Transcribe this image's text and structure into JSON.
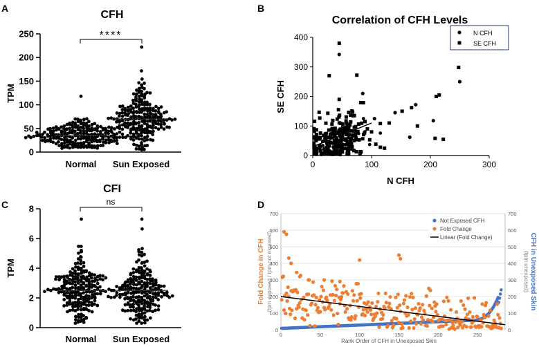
{
  "chart_data": [
    {
      "id": "A",
      "panel_label": "A",
      "type": "scatter",
      "title": "CFH",
      "ylabel": "TPM",
      "xlabel": "",
      "categories": [
        "Normal",
        "Sun Exposed"
      ],
      "ylim": [
        0,
        250
      ],
      "yticks": [
        0,
        50,
        100,
        150,
        200,
        250
      ],
      "significance": "****",
      "series": [
        {
          "name": "Normal",
          "min": 8,
          "max": 118,
          "median": 35,
          "n": 230,
          "spread": 23
        },
        {
          "name": "Sun Exposed",
          "min": 5,
          "max": 222,
          "median": 70,
          "n": 230,
          "spread": 40
        }
      ]
    },
    {
      "id": "B",
      "panel_label": "B",
      "type": "scatter",
      "title": "Correlation of CFH Levels",
      "xlabel": "N CFH",
      "ylabel": "SE CFH",
      "xlim": [
        0,
        300
      ],
      "ylim": [
        0,
        400
      ],
      "xticks": [
        0,
        100,
        200,
        300
      ],
      "yticks": [
        0,
        100,
        200,
        300,
        400
      ],
      "legend": [
        "N CFH",
        "SE CFH"
      ],
      "regression": {
        "x": [
          0,
          100
        ],
        "y": [
          30,
          110
        ]
      },
      "highlight_points": [
        {
          "x": 45,
          "y": 380
        },
        {
          "x": 45,
          "y": 342
        },
        {
          "x": 28,
          "y": 270
        },
        {
          "x": 75,
          "y": 272
        },
        {
          "x": 85,
          "y": 210
        },
        {
          "x": 45,
          "y": 190
        },
        {
          "x": 248,
          "y": 298
        },
        {
          "x": 250,
          "y": 250
        },
        {
          "x": 215,
          "y": 205
        },
        {
          "x": 210,
          "y": 200
        },
        {
          "x": 205,
          "y": 118
        },
        {
          "x": 208,
          "y": 58
        },
        {
          "x": 222,
          "y": 55
        },
        {
          "x": 175,
          "y": 172
        },
        {
          "x": 168,
          "y": 162
        },
        {
          "x": 152,
          "y": 150
        },
        {
          "x": 140,
          "y": 145
        },
        {
          "x": 130,
          "y": 110
        },
        {
          "x": 178,
          "y": 100
        },
        {
          "x": 165,
          "y": 62
        },
        {
          "x": 122,
          "y": 25
        },
        {
          "x": 115,
          "y": 28
        },
        {
          "x": 105,
          "y": 125
        },
        {
          "x": 100,
          "y": 80
        }
      ]
    },
    {
      "id": "C",
      "panel_label": "C",
      "type": "scatter",
      "title": "CFI",
      "ylabel": "TPM",
      "xlabel": "",
      "categories": [
        "Normal",
        "Sun Exposed"
      ],
      "ylim": [
        0,
        8
      ],
      "yticks": [
        0,
        2,
        4,
        6,
        8
      ],
      "significance": "ns",
      "series": [
        {
          "name": "Normal",
          "min": 0.3,
          "max": 7.3,
          "median": 2.5,
          "n": 230,
          "spread": 1.25
        },
        {
          "name": "Sun Exposed",
          "min": 0.3,
          "max": 7.3,
          "median": 2.5,
          "n": 230,
          "spread": 1.25
        }
      ]
    },
    {
      "id": "D",
      "panel_label": "D",
      "type": "scatter",
      "title": "",
      "xlabel": "Rank Order of CFH in Unexposed Skin",
      "ylabel_left": "Fold Change in CFH",
      "ylabel_left_sub": "(tpm exposed / tpm not exposed)",
      "ylabel_right": "CFH in Unexposed Skin",
      "ylabel_right_sub": "(tpm unexposed)",
      "xlim": [
        0,
        285
      ],
      "xticks": [
        0,
        50,
        100,
        150,
        200,
        250
      ],
      "ylim_left": [
        0,
        700
      ],
      "yticks_left": [
        0,
        100,
        200,
        300,
        400,
        500,
        600,
        700
      ],
      "ylim_right": [
        0,
        700
      ],
      "yticks_right": [
        0,
        100,
        200,
        300,
        400,
        500,
        600,
        700
      ],
      "legend": [
        "Not Exposed CFH",
        "Fold Change",
        "Linear (Fold Change)"
      ],
      "trendline": {
        "x": [
          0,
          285
        ],
        "y": [
          200,
          30
        ]
      },
      "colors": {
        "not_exposed": "#4472C4",
        "fold_change": "#ED7D31",
        "trend": "#000000"
      }
    }
  ]
}
